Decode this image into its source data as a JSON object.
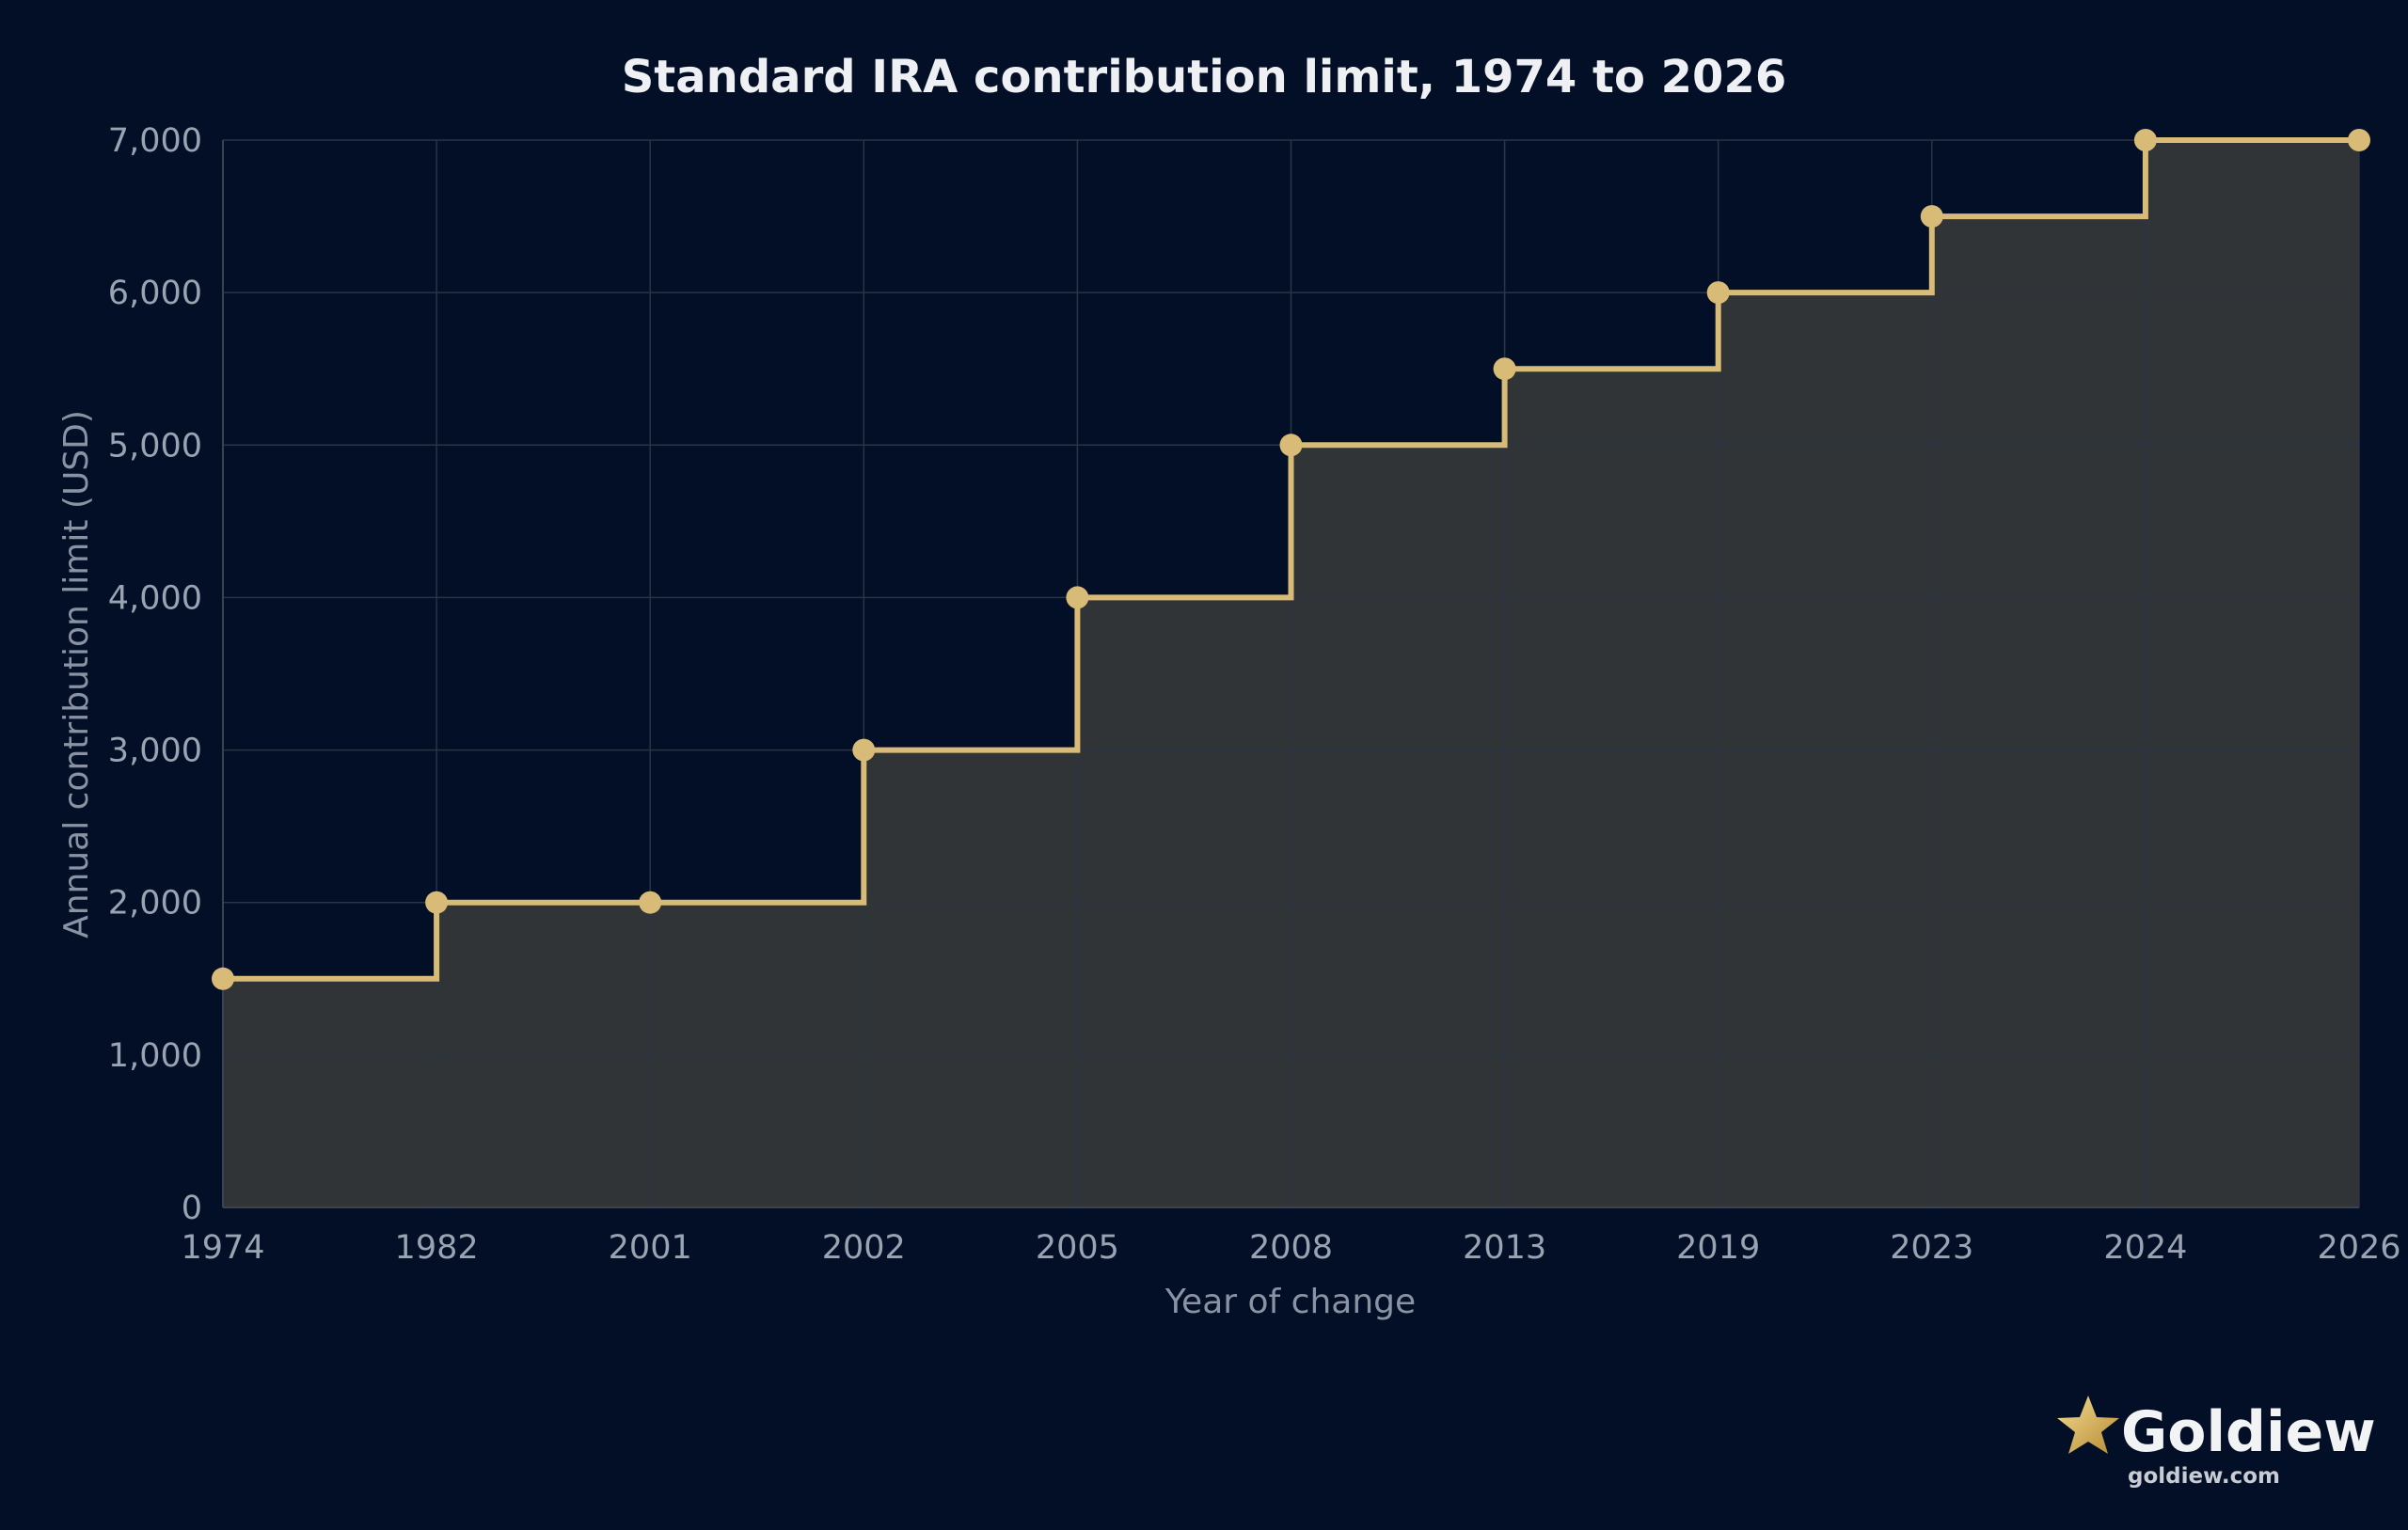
{
  "chart_data": {
    "type": "line",
    "step": "after",
    "title": "Standard IRA contribution limit, 1974 to 2026",
    "xlabel": "Year of change",
    "ylabel": "Annual contribution limit (USD)",
    "categories": [
      "1974",
      "1982",
      "2001",
      "2002",
      "2005",
      "2008",
      "2013",
      "2019",
      "2023",
      "2024",
      "2026"
    ],
    "series": [
      {
        "values": [
          1500,
          2000,
          2000,
          3000,
          4000,
          5000,
          5500,
          6000,
          6500,
          7000,
          7000
        ]
      }
    ],
    "ylim": [
      0,
      7000
    ],
    "yticks": [
      0,
      1000,
      2000,
      3000,
      4000,
      5000,
      6000,
      7000
    ],
    "ytick_labels": [
      "0",
      "1,000",
      "2,000",
      "3,000",
      "4,000",
      "5,000",
      "6,000",
      "7,000"
    ],
    "grid": true,
    "fill_under_line": true,
    "colors": {
      "line": "#d8bb76",
      "fill": "#313436",
      "grid": "#2b3444",
      "background": "#020f26"
    }
  },
  "brand": {
    "name": "Goldiew",
    "url": "goldiew.com",
    "icon": "star-icon",
    "icon_color": "#d4af5a"
  }
}
